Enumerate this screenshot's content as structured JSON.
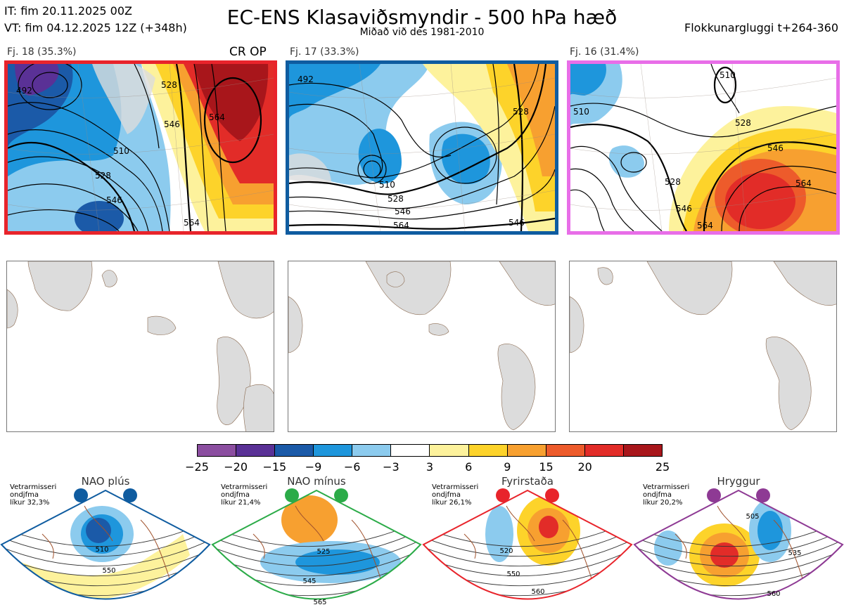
{
  "header": {
    "issue_time": "IT: fim 20.11.2025 00Z",
    "valid_time": "VT: fim 04.12.2025 12Z  (+348h)",
    "title": "EC-ENS Klasaviðsmyndir - 500 hPa hæð",
    "subtitle": "Miðað við des 1981-2010",
    "window": "Flokkunargluggi t+264-360"
  },
  "clusters": [
    {
      "label": "Fj. 18 (35.3%)",
      "tag": "CR OP",
      "frame_color": "#e8242b",
      "contour_labels": [
        "492",
        "510",
        "528",
        "528",
        "546",
        "564",
        "546",
        "564"
      ]
    },
    {
      "label": "Fj. 17 (33.3%)",
      "tag": "",
      "frame_color": "#0f5ca0",
      "contour_labels": [
        "492",
        "510",
        "528",
        "546",
        "564",
        "546",
        "528"
      ]
    },
    {
      "label": "Fj. 16 (31.4%)",
      "tag": "",
      "frame_color": "#e86ee8",
      "contour_labels": [
        "510",
        "510",
        "528",
        "546",
        "528",
        "546",
        "564",
        "564"
      ]
    }
  ],
  "chart_data": {
    "type": "heatmap",
    "title": "EC-ENS Klasaviðsmyndir - 500 hPa hæð",
    "colorbar": {
      "ticks": [
        "−25",
        "−20",
        "−15",
        "−9",
        "−6",
        "−3",
        "3",
        "6",
        "9",
        "15",
        "20",
        "25"
      ],
      "colors": [
        "#8b4ea0",
        "#5a3196",
        "#1b5aa8",
        "#1e96dc",
        "#8ccbee",
        "#ffffff",
        "#fdf29c",
        "#fdd32a",
        "#f7a030",
        "#ed5b2b",
        "#e22c28",
        "#a8161b"
      ]
    }
  },
  "regimes": [
    {
      "name": "NAO plús",
      "season": "Vetrarmisseri\nondjfma\nlíkur 32,3%",
      "color": "#0f5ca0",
      "labels": [
        "510",
        "550"
      ]
    },
    {
      "name": "NAO mínus",
      "season": "Vetrarmisseri\nondjfma\nlíkur 21,4%",
      "color": "#2bab48",
      "labels": [
        "525",
        "545",
        "565"
      ]
    },
    {
      "name": "Fyrirstaða",
      "season": "Vetrarmisseri\nondjfma\nlíkur 26,1%",
      "color": "#e8242b",
      "labels": [
        "520",
        "550",
        "560"
      ]
    },
    {
      "name": "Hryggur",
      "season": "Vetrarmisseri\nondjfma\nlíkur 20,2%",
      "color": "#8e3a94",
      "labels": [
        "505",
        "535",
        "560"
      ]
    }
  ]
}
